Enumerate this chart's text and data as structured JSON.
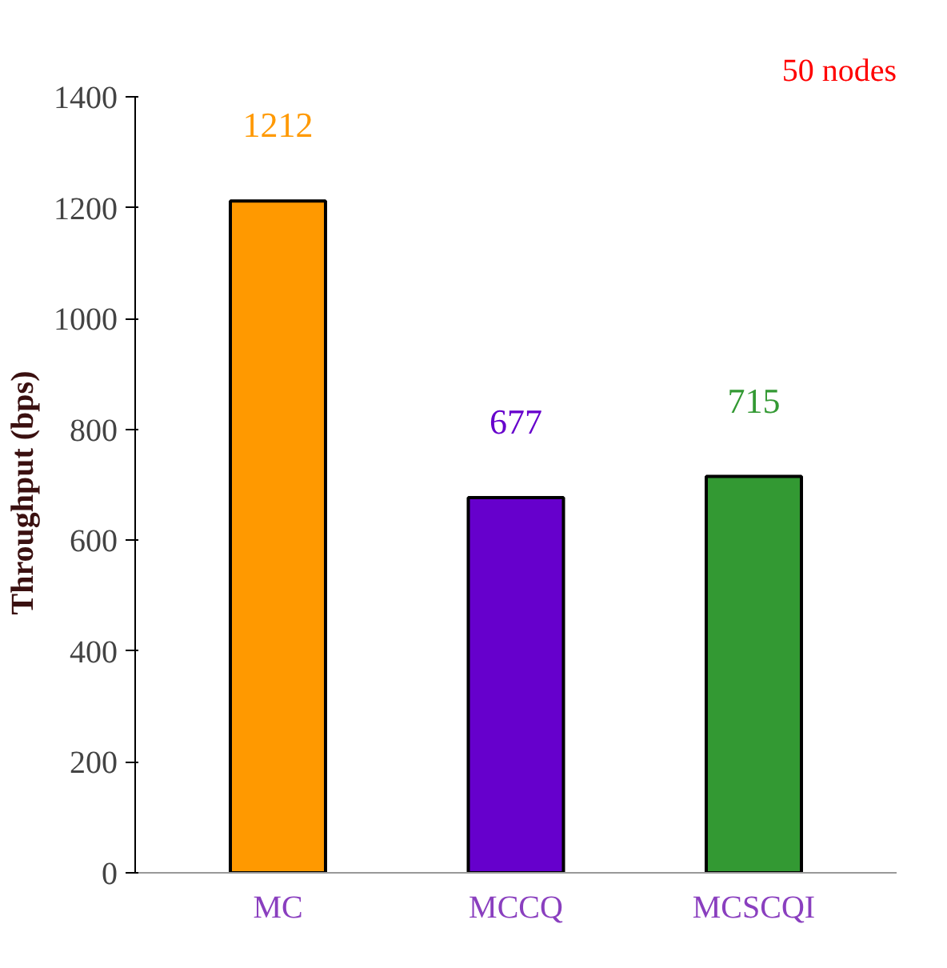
{
  "chart_data": {
    "type": "bar",
    "categories": [
      "MC",
      "MCCQ",
      "MCSCQI"
    ],
    "values": [
      1212,
      677,
      715
    ],
    "colors": [
      "#ff9900",
      "#6600cc",
      "#339933"
    ],
    "ylabel": "Throughput   (bps)",
    "ylim": [
      0,
      1400
    ],
    "yticks": [
      0,
      200,
      400,
      600,
      800,
      1000,
      1200,
      1400
    ],
    "data_labels": true,
    "grid": false,
    "annotations": [
      "50 nodes"
    ]
  }
}
